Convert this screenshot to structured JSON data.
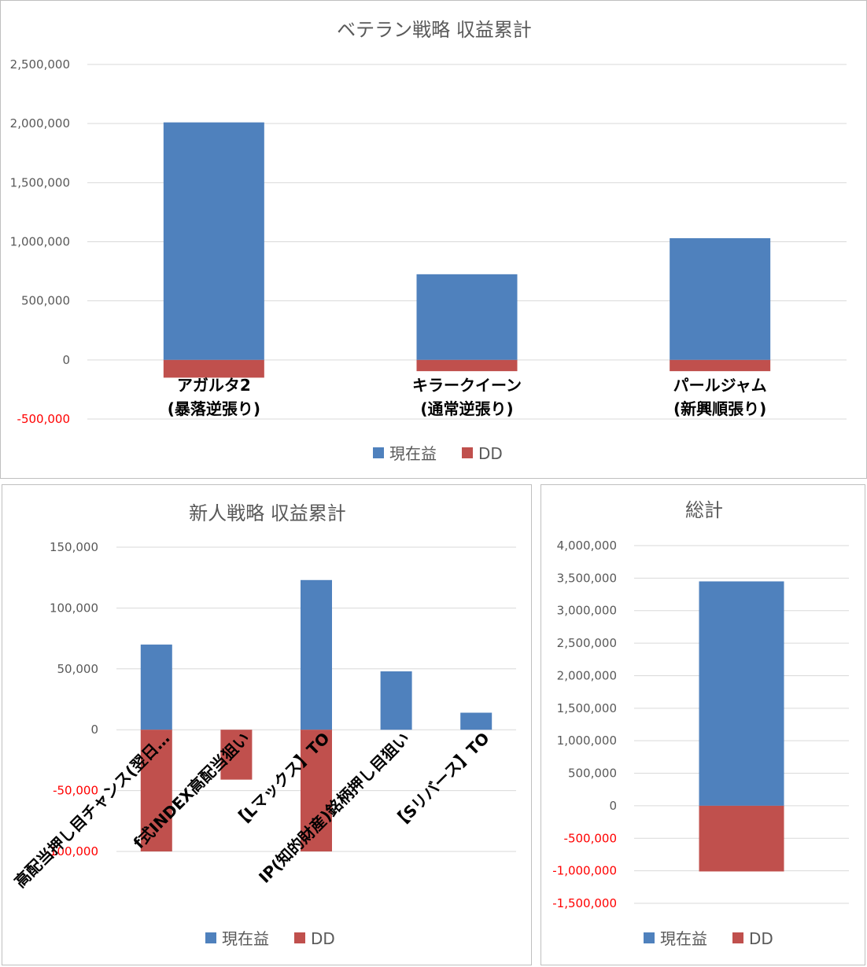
{
  "colors": {
    "profit": "#4f81bd",
    "dd": "#c0504d"
  },
  "legend": {
    "profit": "現在益",
    "dd": "DD"
  },
  "chart_data": [
    {
      "type": "bar",
      "title": "ベテラン戦略 収益累計",
      "categories": [
        [
          "アガルタ2",
          "(暴落逆張り)"
        ],
        [
          "キラークイーン",
          "(通常逆張り)"
        ],
        [
          "パールジャム",
          "(新興順張り)"
        ]
      ],
      "series": [
        {
          "name": "現在益",
          "values": [
            2010000,
            725000,
            1030000
          ]
        },
        {
          "name": "DD",
          "values": [
            -150000,
            -95000,
            -95000
          ]
        }
      ],
      "yticks": [
        "2,500,000",
        "2,000,000",
        "1,500,000",
        "1,000,000",
        "500,000",
        "0",
        "-500,000"
      ],
      "ylim": [
        -500000,
        2500000
      ],
      "grid": true,
      "legend_position": "bottom"
    },
    {
      "type": "bar",
      "title": "新人戦略 収益累計",
      "categories": [
        "高配当押し目チャンス(翌日…",
        "f式INDEX高配当狙い",
        "【Lマックス】TO",
        "IP(知的財産)銘柄押し目狙い",
        "【Sリバース】TO"
      ],
      "series": [
        {
          "name": "現在益",
          "values": [
            70000,
            0,
            123000,
            48000,
            14000
          ]
        },
        {
          "name": "DD",
          "values": [
            -100000,
            -41000,
            -100000,
            0,
            0
          ]
        }
      ],
      "yticks": [
        "150,000",
        "100,000",
        "50,000",
        "0",
        "-50,000",
        "-100,000"
      ],
      "ylim": [
        -100000,
        150000
      ],
      "grid": true,
      "legend_position": "bottom"
    },
    {
      "type": "bar",
      "title": "総計",
      "categories": [
        ""
      ],
      "series": [
        {
          "name": "現在益",
          "values": [
            3450000
          ]
        },
        {
          "name": "DD",
          "values": [
            -1010000
          ]
        }
      ],
      "yticks": [
        "4,000,000",
        "3,500,000",
        "3,000,000",
        "2,500,000",
        "2,000,000",
        "1,500,000",
        "1,000,000",
        "500,000",
        "0",
        "-500,000",
        "-1,000,000",
        "-1,500,000"
      ],
      "ylim": [
        -1500000,
        4000000
      ],
      "grid": true,
      "legend_position": "bottom"
    }
  ]
}
